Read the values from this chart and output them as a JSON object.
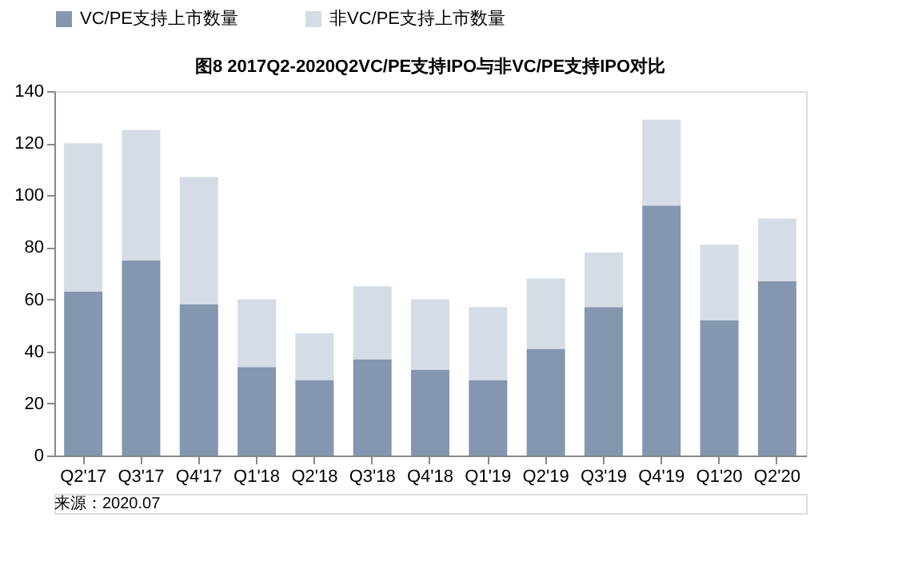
{
  "chart_data": {
    "type": "bar",
    "stacked": true,
    "title": "图8 2017Q2-2020Q2VC/PE支持IPO与非VC/PE支持IPO对比",
    "categories": [
      "Q2'17",
      "Q3'17",
      "Q4'17",
      "Q1'18",
      "Q2'18",
      "Q3'18",
      "Q4'18",
      "Q1'19",
      "Q2'19",
      "Q3'19",
      "Q4'19",
      "Q1'20",
      "Q2'20"
    ],
    "series": [
      {
        "name": "VC/PE支持上市数量",
        "color": "#8496b0",
        "values": [
          63,
          75,
          58,
          34,
          29,
          37,
          33,
          29,
          41,
          57,
          96,
          52,
          67
        ]
      },
      {
        "name": "非VC/PE支持上市数量",
        "color": "#d6dce5",
        "values": [
          57,
          50,
          49,
          26,
          18,
          28,
          27,
          28,
          27,
          21,
          33,
          29,
          24
        ]
      }
    ],
    "ylim": [
      0,
      140
    ],
    "yticks": [
      0,
      20,
      40,
      60,
      80,
      100,
      120,
      140
    ],
    "grid": false,
    "legend": "top",
    "annotations": [
      "来源：2020.07"
    ]
  }
}
